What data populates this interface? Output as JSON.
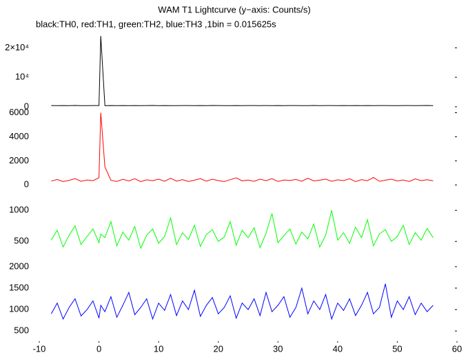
{
  "chart_data": [
    {
      "type": "line",
      "title": "WAM T1 Lightcurve (y−axis: Counts/s)",
      "subtitle": "black:TH0, red:TH1, green:TH2, blue:TH3 ,1bin = 0.015625s",
      "xlim": [
        -10,
        60
      ],
      "ylim": [
        -1200,
        25000
      ],
      "yticks": [
        0,
        {
          "value": 10000,
          "label": "10⁴"
        },
        {
          "value": 20000,
          "label": "2×10⁴"
        }
      ],
      "x": [
        -8,
        -7,
        -6,
        -5,
        -4,
        -3,
        -2,
        -1,
        0,
        0.3,
        1,
        2,
        3,
        4,
        5,
        6,
        7,
        8,
        9,
        10,
        11,
        12,
        13,
        14,
        15,
        16,
        17,
        18,
        19,
        20,
        21,
        22,
        23,
        24,
        25,
        26,
        27,
        28,
        29,
        30,
        31,
        32,
        33,
        34,
        35,
        36,
        37,
        38,
        39,
        40,
        41,
        42,
        43,
        44,
        45,
        46,
        47,
        48,
        49,
        50,
        51,
        52,
        53,
        54,
        55,
        56
      ],
      "series": [
        {
          "color": "#000000",
          "values": [
            410,
            380,
            420,
            395,
            430,
            400,
            385,
            415,
            405,
            24000,
            390,
            425,
            400,
            410,
            385,
            420,
            395,
            405,
            430,
            390,
            410,
            400,
            385,
            415,
            420,
            395,
            405,
            390,
            430,
            410,
            400,
            385,
            420,
            395,
            410,
            405,
            390,
            425,
            400,
            415,
            385,
            410,
            420,
            395,
            400,
            430,
            390,
            405,
            415,
            385,
            420,
            400,
            410,
            395,
            425,
            390,
            405,
            415,
            400,
            385,
            420,
            410,
            395,
            405,
            430,
            400
          ]
        }
      ]
    },
    {
      "type": "line",
      "xlim": [
        -10,
        60
      ],
      "ylim": [
        -100,
        6200
      ],
      "yticks": [
        0,
        2000,
        4000,
        6000
      ],
      "x": [
        -8,
        -7,
        -6,
        -5,
        -4,
        -3,
        -2,
        -1,
        0,
        0.3,
        1,
        2,
        3,
        4,
        5,
        6,
        7,
        8,
        9,
        10,
        11,
        12,
        13,
        14,
        15,
        16,
        17,
        18,
        19,
        20,
        21,
        22,
        23,
        24,
        25,
        26,
        27,
        28,
        29,
        30,
        31,
        32,
        33,
        34,
        35,
        36,
        37,
        38,
        39,
        40,
        41,
        42,
        43,
        44,
        45,
        46,
        47,
        48,
        49,
        50,
        51,
        52,
        53,
        54,
        55,
        56
      ],
      "series": [
        {
          "color": "#ff0000",
          "values": [
            320,
            450,
            280,
            380,
            520,
            300,
            410,
            350,
            600,
            6000,
            1500,
            380,
            290,
            460,
            330,
            510,
            270,
            420,
            350,
            480,
            300,
            560,
            320,
            440,
            290,
            390,
            520,
            310,
            470,
            360,
            280,
            430,
            590,
            340,
            400,
            300,
            480,
            350,
            520,
            290,
            410,
            370,
            450,
            310,
            560,
            330,
            390,
            480,
            300,
            420,
            360,
            510,
            280,
            440,
            350,
            620,
            300,
            390,
            470,
            330,
            410,
            290,
            500,
            360,
            430,
            340
          ]
        }
      ]
    },
    {
      "type": "line",
      "xlim": [
        -10,
        60
      ],
      "ylim": [
        170,
        1390
      ],
      "yticks": [
        500,
        1000
      ],
      "x": [
        -8,
        -7,
        -6,
        -5,
        -4,
        -3,
        -2,
        -1,
        0,
        0.3,
        1,
        2,
        3,
        4,
        5,
        6,
        7,
        8,
        9,
        10,
        11,
        12,
        13,
        14,
        15,
        16,
        17,
        18,
        19,
        20,
        21,
        22,
        23,
        24,
        25,
        26,
        27,
        28,
        29,
        30,
        31,
        32,
        33,
        34,
        35,
        36,
        37,
        38,
        39,
        40,
        41,
        42,
        43,
        44,
        45,
        46,
        47,
        48,
        49,
        50,
        51,
        52,
        53,
        54,
        55,
        56
      ],
      "series": [
        {
          "color": "#00ff00",
          "values": [
            520,
            680,
            410,
            600,
            750,
            450,
            580,
            700,
            480,
            620,
            560,
            820,
            430,
            650,
            520,
            740,
            390,
            600,
            700,
            470,
            580,
            880,
            450,
            640,
            530,
            760,
            420,
            610,
            690,
            500,
            570,
            820,
            440,
            680,
            560,
            720,
            400,
            630,
            950,
            480,
            590,
            700,
            460,
            650,
            540,
            780,
            410,
            600,
            1000,
            520,
            640,
            470,
            730,
            560,
            850,
            430,
            620,
            690,
            500,
            580,
            760,
            450,
            640,
            520,
            710,
            560
          ]
        }
      ]
    },
    {
      "type": "line",
      "xlim": [
        -10,
        60
      ],
      "ylim": [
        230,
        2110
      ],
      "yticks": [
        500,
        1000,
        1500,
        2000
      ],
      "xticks": [
        -10,
        0,
        10,
        20,
        30,
        40,
        50,
        60
      ],
      "x": [
        -8,
        -7,
        -6,
        -5,
        -4,
        -3,
        -2,
        -1,
        0,
        0.3,
        1,
        2,
        3,
        4,
        5,
        6,
        7,
        8,
        9,
        10,
        11,
        12,
        13,
        14,
        15,
        16,
        17,
        18,
        19,
        20,
        21,
        22,
        23,
        24,
        25,
        26,
        27,
        28,
        29,
        30,
        31,
        32,
        33,
        34,
        35,
        36,
        37,
        38,
        39,
        40,
        41,
        42,
        43,
        44,
        45,
        46,
        47,
        48,
        49,
        50,
        51,
        52,
        53,
        54,
        55,
        56
      ],
      "series": [
        {
          "color": "#0000ff",
          "values": [
            900,
            1150,
            780,
            1050,
            1250,
            850,
            1000,
            1200,
            800,
            1100,
            950,
            1300,
            820,
            1100,
            1400,
            880,
            1050,
            1250,
            780,
            1150,
            980,
            1350,
            860,
            1200,
            1000,
            1450,
            840,
            1100,
            1280,
            900,
            1050,
            1320,
            800,
            1150,
            1000,
            1250,
            860,
            1400,
            950,
            1100,
            1300,
            820,
            1050,
            1500,
            900,
            1200,
            1000,
            1350,
            780,
            1150,
            980,
            1250,
            860,
            1100,
            1400,
            900,
            1050,
            1600,
            820,
            1200,
            1000,
            1300,
            880,
            1150,
            950,
            1100
          ]
        }
      ]
    }
  ]
}
